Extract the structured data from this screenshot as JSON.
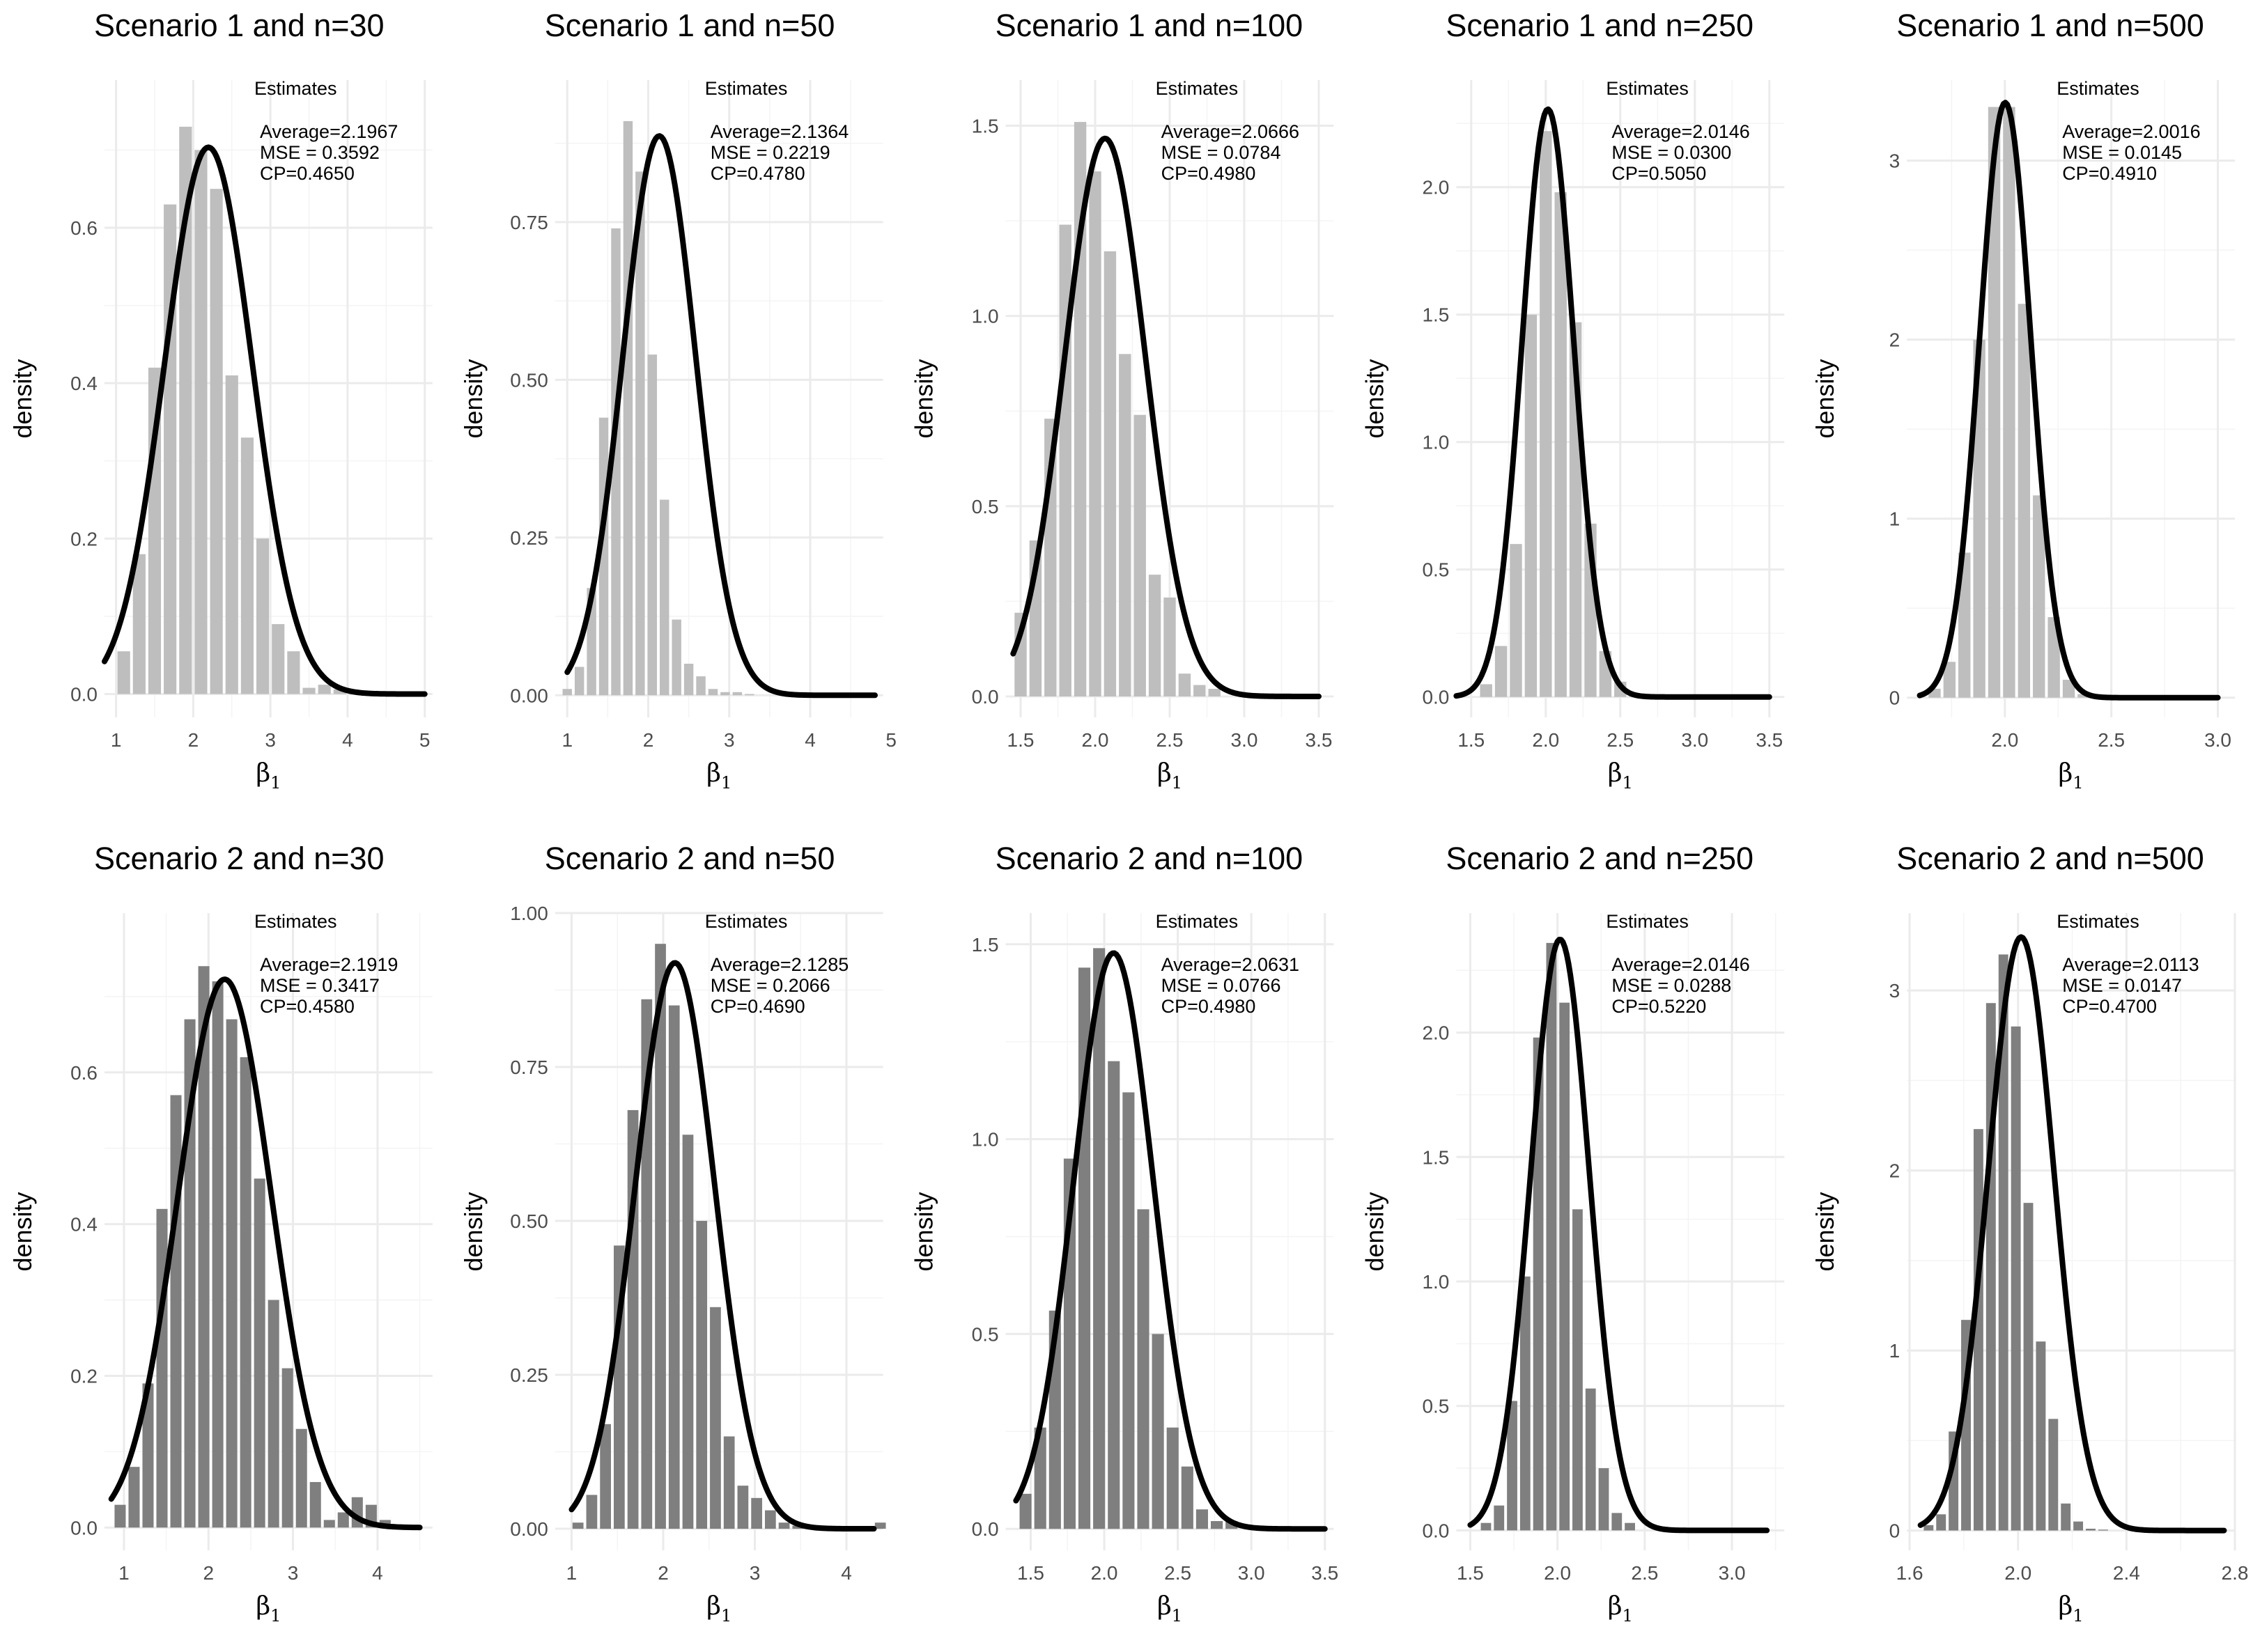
{
  "figure": {
    "colors": {
      "row1_bars": "#bebebe",
      "row2_bars": "#7f7f7f",
      "curve": "#000000",
      "grid": "#ebebeb",
      "tick_text": "#4d4d4d"
    },
    "annotation_title": "Estimates"
  },
  "chart_data": [
    {
      "type": "bar",
      "title": "Scenario 1 and n=30",
      "xlabel": "β",
      "xlabel_sub": "1",
      "ylabel": "density",
      "xlim": [
        0.85,
        5.1
      ],
      "ylim": [
        -0.03,
        0.79
      ],
      "xticks": [
        1,
        2,
        3,
        4,
        5
      ],
      "xtick_labels": [
        "1",
        "2",
        "3",
        "4",
        "5"
      ],
      "yticks": [
        0,
        0.2,
        0.4,
        0.6
      ],
      "ytick_labels": [
        "0.0",
        "0.2",
        "0.4",
        "0.6"
      ],
      "bin_width": 0.2,
      "bins_start": 1,
      "values": [
        0.055,
        0.18,
        0.42,
        0.63,
        0.73,
        0.7,
        0.65,
        0.41,
        0.33,
        0.2,
        0.09,
        0.055,
        0.008,
        0.012,
        0.006,
        0.005,
        0.002
      ],
      "curve": {
        "mean": 2.1967,
        "sd": 0.567,
        "from": 0.85,
        "to": 5.0
      },
      "annotation": {
        "average": "Average=2.1967",
        "mse": "MSE = 0.3592",
        "cp": "CP=0.4650"
      }
    },
    {
      "type": "bar",
      "title": "Scenario 1 and n=50",
      "xlabel": "β",
      "xlabel_sub": "1",
      "ylabel": "density",
      "xlim": [
        0.85,
        4.9
      ],
      "ylim": [
        -0.035,
        0.975
      ],
      "xticks": [
        1,
        2,
        3,
        4,
        5
      ],
      "xtick_labels": [
        "1",
        "2",
        "3",
        "4",
        "5"
      ],
      "yticks": [
        0,
        0.25,
        0.5,
        0.75
      ],
      "ytick_labels": [
        "0.00",
        "0.25",
        "0.50",
        "0.75"
      ],
      "bin_width": 0.15,
      "bins_start": 0.925,
      "values": [
        0.01,
        0.045,
        0.17,
        0.44,
        0.74,
        0.91,
        0.83,
        0.54,
        0.31,
        0.12,
        0.05,
        0.03,
        0.01,
        0.005,
        0.005,
        0.002
      ],
      "curve": {
        "mean": 2.1364,
        "sd": 0.45,
        "from": 1.0,
        "to": 4.8
      },
      "annotation": {
        "average": "Average=2.1364",
        "mse": "MSE = 0.2219",
        "cp": "CP=0.4780"
      }
    },
    {
      "type": "bar",
      "title": "Scenario 1 and n=100",
      "xlabel": "β",
      "xlabel_sub": "1",
      "ylabel": "density",
      "xlim": [
        1.4,
        3.6
      ],
      "ylim": [
        -0.055,
        1.62
      ],
      "xticks": [
        1.5,
        2.0,
        2.5,
        3.0,
        3.5
      ],
      "xtick_labels": [
        "1.5",
        "2.0",
        "2.5",
        "3.0",
        "3.5"
      ],
      "yticks": [
        0,
        0.5,
        1.0,
        1.5
      ],
      "ytick_labels": [
        "0.0",
        "0.5",
        "1.0",
        "1.5"
      ],
      "bin_width": 0.1,
      "bins_start": 1.45,
      "values": [
        0.22,
        0.41,
        0.73,
        1.24,
        1.51,
        1.38,
        1.17,
        0.9,
        0.74,
        0.32,
        0.26,
        0.06,
        0.03,
        0.02
      ],
      "curve": {
        "mean": 2.0666,
        "sd": 0.272,
        "from": 1.45,
        "to": 3.5
      },
      "annotation": {
        "average": "Average=2.0666",
        "mse": "MSE = 0.0784",
        "cp": "CP=0.4980"
      }
    },
    {
      "type": "bar",
      "title": "Scenario 1 and n=250",
      "xlabel": "β",
      "xlabel_sub": "1",
      "ylabel": "density",
      "xlim": [
        1.4,
        3.6
      ],
      "ylim": [
        -0.08,
        2.42
      ],
      "xticks": [
        1.5,
        2.0,
        2.5,
        3.0,
        3.5
      ],
      "xtick_labels": [
        "1.5",
        "2.0",
        "2.5",
        "3.0",
        "3.5"
      ],
      "yticks": [
        0,
        0.5,
        1.0,
        1.5,
        2.0
      ],
      "ytick_labels": [
        "0.0",
        "0.5",
        "1.0",
        "1.5",
        "2.0"
      ],
      "bin_width": 0.1,
      "bins_start": 1.55,
      "values": [
        0.05,
        0.2,
        0.6,
        1.5,
        2.22,
        1.98,
        1.47,
        0.68,
        0.18,
        0.06,
        0.01
      ],
      "curve": {
        "mean": 2.0146,
        "sd": 0.173,
        "from": 1.4,
        "to": 3.5
      },
      "annotation": {
        "average": "Average=2.0146",
        "mse": "MSE = 0.0300",
        "cp": "CP=0.5050"
      }
    },
    {
      "type": "bar",
      "title": "Scenario 1 and n=500",
      "xlabel": "β",
      "xlabel_sub": "1",
      "ylabel": "density",
      "xlim": [
        1.54,
        3.08
      ],
      "ylim": [
        -0.11,
        3.45
      ],
      "xticks": [
        2.0,
        2.5,
        3.0
      ],
      "xtick_labels": [
        "2.0",
        "2.5",
        "3.0"
      ],
      "yticks": [
        0,
        1,
        2,
        3
      ],
      "ytick_labels": [
        "0",
        "1",
        "2",
        "3"
      ],
      "bin_width": 0.07,
      "bins_start": 1.635,
      "values": [
        0.05,
        0.2,
        0.81,
        2.0,
        3.3,
        3.3,
        2.2,
        1.13,
        0.45,
        0.1,
        0.02
      ],
      "curve": {
        "mean": 2.0016,
        "sd": 0.12,
        "from": 1.6,
        "to": 3.0
      },
      "annotation": {
        "average": "Average=2.0016",
        "mse": "MSE = 0.0145",
        "cp": "CP=0.4910"
      }
    },
    {
      "type": "bar",
      "title": "Scenario 2 and n=30",
      "xlabel": "β",
      "xlabel_sub": "1",
      "ylabel": "density",
      "xlim": [
        0.77,
        4.65
      ],
      "ylim": [
        -0.03,
        0.81
      ],
      "xticks": [
        1,
        2,
        3,
        4
      ],
      "xtick_labels": [
        "1",
        "2",
        "3",
        "4"
      ],
      "yticks": [
        0,
        0.2,
        0.4,
        0.6
      ],
      "ytick_labels": [
        "0.0",
        "0.2",
        "0.4",
        "0.6"
      ],
      "bin_width": 0.165,
      "bins_start": 0.8725,
      "values": [
        0.03,
        0.08,
        0.19,
        0.42,
        0.57,
        0.67,
        0.74,
        0.72,
        0.67,
        0.62,
        0.46,
        0.3,
        0.21,
        0.13,
        0.06,
        0.01,
        0.02,
        0.04,
        0.03,
        0.01
      ],
      "curve": {
        "mean": 2.1919,
        "sd": 0.552,
        "from": 0.85,
        "to": 4.5
      },
      "annotation": {
        "average": "Average=2.1919",
        "mse": "MSE = 0.3417",
        "cp": "CP=0.4580"
      }
    },
    {
      "type": "bar",
      "title": "Scenario 2 and n=50",
      "xlabel": "β",
      "xlabel_sub": "1",
      "ylabel": "density",
      "xlim": [
        0.82,
        4.4
      ],
      "ylim": [
        -0.035,
        1.0
      ],
      "xticks": [
        1,
        2,
        3,
        4
      ],
      "xtick_labels": [
        "1",
        "2",
        "3",
        "4"
      ],
      "yticks": [
        0,
        0.25,
        0.5,
        0.75,
        1.0
      ],
      "ytick_labels": [
        "0.00",
        "0.25",
        "0.50",
        "0.75",
        "1.00"
      ],
      "bin_width": 0.15,
      "bins_start": 0.995,
      "values": [
        0.01,
        0.055,
        0.17,
        0.46,
        0.68,
        0.86,
        0.95,
        0.85,
        0.64,
        0.5,
        0.36,
        0.15,
        0.07,
        0.05,
        0.03,
        0.01,
        0.005,
        0.002,
        0.002,
        0.002,
        0.002,
        0.002,
        0.01
      ],
      "curve": {
        "mean": 2.1285,
        "sd": 0.434,
        "from": 1.0,
        "to": 4.3
      },
      "annotation": {
        "average": "Average=2.1285",
        "mse": "MSE = 0.2066",
        "cp": "CP=0.4690"
      }
    },
    {
      "type": "bar",
      "title": "Scenario 2 and n=100",
      "xlabel": "β",
      "xlabel_sub": "1",
      "ylabel": "density",
      "xlim": [
        1.33,
        3.56
      ],
      "ylim": [
        -0.055,
        1.58
      ],
      "xticks": [
        1.5,
        2.0,
        2.5,
        3.0,
        3.5
      ],
      "xtick_labels": [
        "1.5",
        "2.0",
        "2.5",
        "3.0",
        "3.5"
      ],
      "yticks": [
        0,
        0.5,
        1.0,
        1.5
      ],
      "ytick_labels": [
        "0.0",
        "0.5",
        "1.0",
        "1.5"
      ],
      "bin_width": 0.1,
      "bins_start": 1.415,
      "values": [
        0.09,
        0.26,
        0.56,
        0.95,
        1.44,
        1.49,
        1.2,
        1.12,
        0.82,
        0.5,
        0.26,
        0.16,
        0.05,
        0.02,
        0.02
      ],
      "curve": {
        "mean": 2.0631,
        "sd": 0.27,
        "from": 1.4,
        "to": 3.5
      },
      "annotation": {
        "average": "Average=2.0631",
        "mse": "MSE = 0.0766",
        "cp": "CP=0.4980"
      }
    },
    {
      "type": "bar",
      "title": "Scenario 2 and n=250",
      "xlabel": "β",
      "xlabel_sub": "1",
      "ylabel": "density",
      "xlim": [
        1.42,
        3.3
      ],
      "ylim": [
        -0.08,
        2.48
      ],
      "xticks": [
        1.5,
        2.0,
        2.5,
        3.0
      ],
      "xtick_labels": [
        "1.5",
        "2.0",
        "2.5",
        "3.0"
      ],
      "yticks": [
        0,
        0.5,
        1.0,
        1.5,
        2.0
      ],
      "ytick_labels": [
        "0.0",
        "0.5",
        "1.0",
        "1.5",
        "2.0"
      ],
      "bin_width": 0.075,
      "bins_start": 1.5525,
      "values": [
        0.03,
        0.1,
        0.52,
        1.02,
        1.98,
        2.36,
        2.12,
        1.29,
        0.57,
        0.25,
        0.07,
        0.03
      ],
      "curve": {
        "mean": 2.0146,
        "sd": 0.168,
        "from": 1.5,
        "to": 3.2
      },
      "annotation": {
        "average": "Average=2.0146",
        "mse": "MSE = 0.0288",
        "cp": "CP=0.5220"
      }
    },
    {
      "type": "bar",
      "title": "Scenario 2 and n=500",
      "xlabel": "β",
      "xlabel_sub": "1",
      "ylabel": "density",
      "xlim": [
        1.59,
        2.8
      ],
      "ylim": [
        -0.11,
        3.43
      ],
      "xticks": [
        1.6,
        2.0,
        2.4,
        2.8
      ],
      "xtick_labels": [
        "1.6",
        "2.0",
        "2.4",
        "2.8"
      ],
      "bin_width": 0.046,
      "bins_start": 1.647,
      "yticks": [
        0,
        1,
        2,
        3
      ],
      "ytick_labels": [
        "0",
        "1",
        "2",
        "3"
      ],
      "values": [
        0.03,
        0.09,
        0.55,
        1.17,
        2.23,
        2.93,
        3.2,
        2.8,
        1.82,
        1.05,
        0.62,
        0.15,
        0.05,
        0.01,
        0.005
      ],
      "curve": {
        "mean": 2.0113,
        "sd": 0.121,
        "from": 1.64,
        "to": 2.76
      },
      "annotation": {
        "average": "Average=2.0113",
        "mse": "MSE = 0.0147",
        "cp": "CP=0.4700"
      }
    }
  ]
}
